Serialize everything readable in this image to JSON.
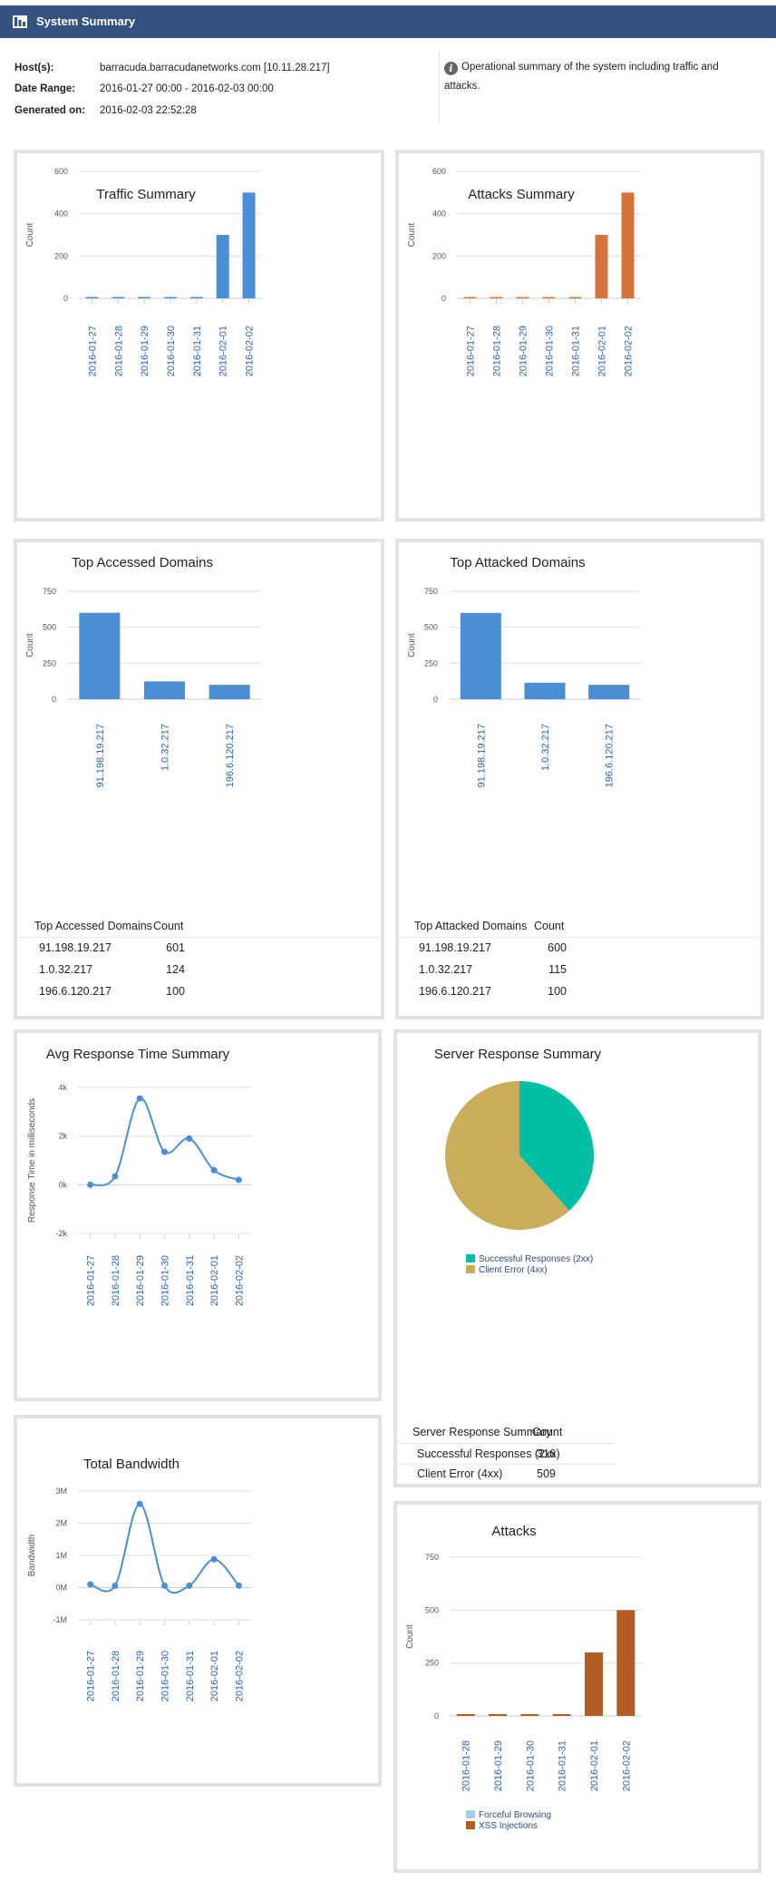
{
  "header": {
    "title": "System Summary",
    "icon": "report-icon"
  },
  "meta": {
    "host_label": "Host(s):",
    "host_value": "barracuda.barracudanetworks.com [10.11.28.217]",
    "date_label": "Date Range:",
    "date_value": "2016-01-27 00:00  -  2016-02-03 00:00",
    "gen_label": "Generated on:",
    "gen_value": "2016-02-03 22:52:28"
  },
  "info": {
    "icon": "info-icon",
    "text": "Operational summary of the system including traffic and attacks."
  },
  "colors": {
    "blue": "#4a8fd3",
    "orange": "#d4733c",
    "brown": "#b35d25",
    "teal": "#00bfa5",
    "gold": "#c9ad5a",
    "lightblue": "#a9cde8",
    "label_blue": "#2d63b4"
  },
  "chart_data": [
    {
      "id": "traffic",
      "type": "bar",
      "title": "Traffic Summary",
      "ylabel": "Count",
      "ylim": [
        0,
        600
      ],
      "yticks": [
        0,
        200,
        400,
        600
      ],
      "categories": [
        "2016-01-27",
        "2016-01-28",
        "2016-01-29",
        "2016-01-30",
        "2016-01-31",
        "2016-02-01",
        "2016-02-02"
      ],
      "values": [
        2,
        2,
        2,
        2,
        2,
        300,
        500
      ]
    },
    {
      "id": "attacks_summary",
      "type": "bar",
      "title": "Attacks Summary",
      "ylabel": "Count",
      "ylim": [
        0,
        600
      ],
      "yticks": [
        0,
        200,
        400,
        600
      ],
      "categories": [
        "2016-01-27",
        "2016-01-28",
        "2016-01-29",
        "2016-01-30",
        "2016-01-31",
        "2016-02-01",
        "2016-02-02"
      ],
      "values": [
        2,
        2,
        2,
        2,
        2,
        300,
        500
      ]
    },
    {
      "id": "top_accessed",
      "type": "bar",
      "title": "Top Accessed Domains",
      "ylabel": "Count",
      "ylim": [
        0,
        750
      ],
      "yticks": [
        0,
        250,
        500,
        750
      ],
      "categories": [
        "91.198.19.217",
        "1.0.32.217",
        "196.6.120.217"
      ],
      "values": [
        601,
        124,
        100
      ]
    },
    {
      "id": "top_attacked",
      "type": "bar",
      "title": "Top Attacked Domains",
      "ylabel": "Count",
      "ylim": [
        0,
        750
      ],
      "yticks": [
        0,
        250,
        500,
        750
      ],
      "categories": [
        "91.198.19.217",
        "1.0.32.217",
        "196.6.120.217"
      ],
      "values": [
        600,
        115,
        100
      ]
    },
    {
      "id": "avg_response",
      "type": "line",
      "title": "Avg Response Time Summary",
      "ylabel": "Response Time in milliseconds",
      "ylim": [
        -2000,
        4000
      ],
      "yticks": [
        -2000,
        0,
        2000,
        4000
      ],
      "ytick_labels": [
        "-2k",
        "0k",
        "2k",
        "4k"
      ],
      "categories": [
        "2016-01-27",
        "2016-01-28",
        "2016-01-29",
        "2016-01-30",
        "2016-01-31",
        "2016-02-01",
        "2016-02-02"
      ],
      "values": [
        0,
        350,
        3550,
        1350,
        1900,
        600,
        200
      ]
    },
    {
      "id": "server_response",
      "type": "pie",
      "title": "Server Response Summary",
      "slices": [
        {
          "label": "Successful Responses (2xx)",
          "value": 316
        },
        {
          "label": "Client Error (4xx)",
          "value": 509
        }
      ]
    },
    {
      "id": "bandwidth",
      "type": "line",
      "title": "Total Bandwidth",
      "ylabel": "Bandwidth",
      "ylim": [
        -1000000,
        3000000
      ],
      "yticks": [
        -1000000,
        0,
        1000000,
        2000000,
        3000000
      ],
      "ytick_labels": [
        "-1M",
        "0M",
        "1M",
        "2M",
        "3M"
      ],
      "categories": [
        "2016-01-27",
        "2016-01-28",
        "2016-01-29",
        "2016-01-30",
        "2016-01-31",
        "2016-02-01",
        "2016-02-02"
      ],
      "values": [
        100000,
        60000,
        2600000,
        60000,
        60000,
        880000,
        60000
      ]
    },
    {
      "id": "attacks",
      "type": "bar",
      "title": "Attacks",
      "ylabel": "Count",
      "ylim": [
        0,
        750
      ],
      "yticks": [
        0,
        250,
        500,
        750
      ],
      "categories": [
        "2016-01-28",
        "2016-01-29",
        "2016-01-30",
        "2016-01-31",
        "2016-02-01",
        "2016-02-02"
      ],
      "series": [
        {
          "name": "Forceful Browsing",
          "values": [
            0,
            0,
            0,
            0,
            0,
            0
          ]
        },
        {
          "name": "XSS Injections",
          "values": [
            8,
            8,
            8,
            8,
            300,
            500
          ]
        }
      ]
    }
  ],
  "tables": {
    "top_accessed": {
      "headers": [
        "Top Accessed Domains",
        "Count"
      ],
      "rows": [
        [
          "91.198.19.217",
          "601"
        ],
        [
          "1.0.32.217",
          "124"
        ],
        [
          "196.6.120.217",
          "100"
        ]
      ]
    },
    "top_attacked": {
      "headers": [
        "Top Attacked Domains",
        "Count"
      ],
      "rows": [
        [
          "91.198.19.217",
          "600"
        ],
        [
          "1.0.32.217",
          "115"
        ],
        [
          "196.6.120.217",
          "100"
        ]
      ]
    },
    "server_response": {
      "headers": [
        "Server Response Summary",
        "Count"
      ],
      "rows": [
        [
          "Successful Responses (2xx)",
          "316"
        ],
        [
          "Client Error (4xx)",
          "509"
        ]
      ]
    }
  }
}
